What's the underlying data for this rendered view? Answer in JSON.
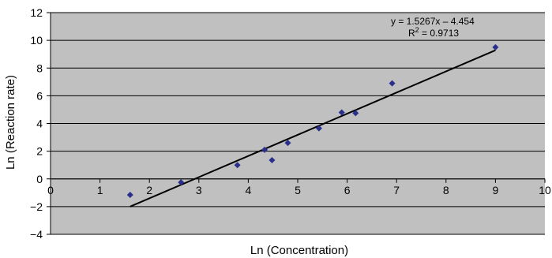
{
  "chart_data": {
    "type": "scatter",
    "xlabel": "Ln (Concentration)",
    "ylabel": "Ln (Reaction rate)",
    "xlim": [
      0,
      10
    ],
    "ylim": [
      -4,
      12
    ],
    "x_ticks": [
      "0",
      "1",
      "2",
      "3",
      "4",
      "5",
      "6",
      "7",
      "8",
      "9",
      "10"
    ],
    "y_ticks": [
      "−4",
      "−2",
      "0",
      "2",
      "4",
      "6",
      "8",
      "10",
      "12"
    ],
    "grid": "horizontal",
    "background": "#c0c0c0",
    "marker_color": "#2b2f8c",
    "line_color": "#000000",
    "series": [
      {
        "points": [
          {
            "x": 1.61,
            "y": -1.15
          },
          {
            "x": 2.64,
            "y": -0.25
          },
          {
            "x": 3.78,
            "y": 1.0
          },
          {
            "x": 4.33,
            "y": 2.1
          },
          {
            "x": 4.48,
            "y": 1.35
          },
          {
            "x": 4.8,
            "y": 2.6
          },
          {
            "x": 5.43,
            "y": 3.65
          },
          {
            "x": 5.89,
            "y": 4.8
          },
          {
            "x": 6.17,
            "y": 4.75
          },
          {
            "x": 6.91,
            "y": 6.9
          },
          {
            "x": 9.0,
            "y": 9.5
          }
        ]
      }
    ],
    "trendline": {
      "slope": 1.5267,
      "intercept": -4.454,
      "x_range": [
        1.61,
        9.0
      ],
      "equation": "y = 1.5267x – 4.454",
      "r2_prefix": "R",
      "r2_sup": "2",
      "r2_suffix": " = 0.9713"
    }
  }
}
